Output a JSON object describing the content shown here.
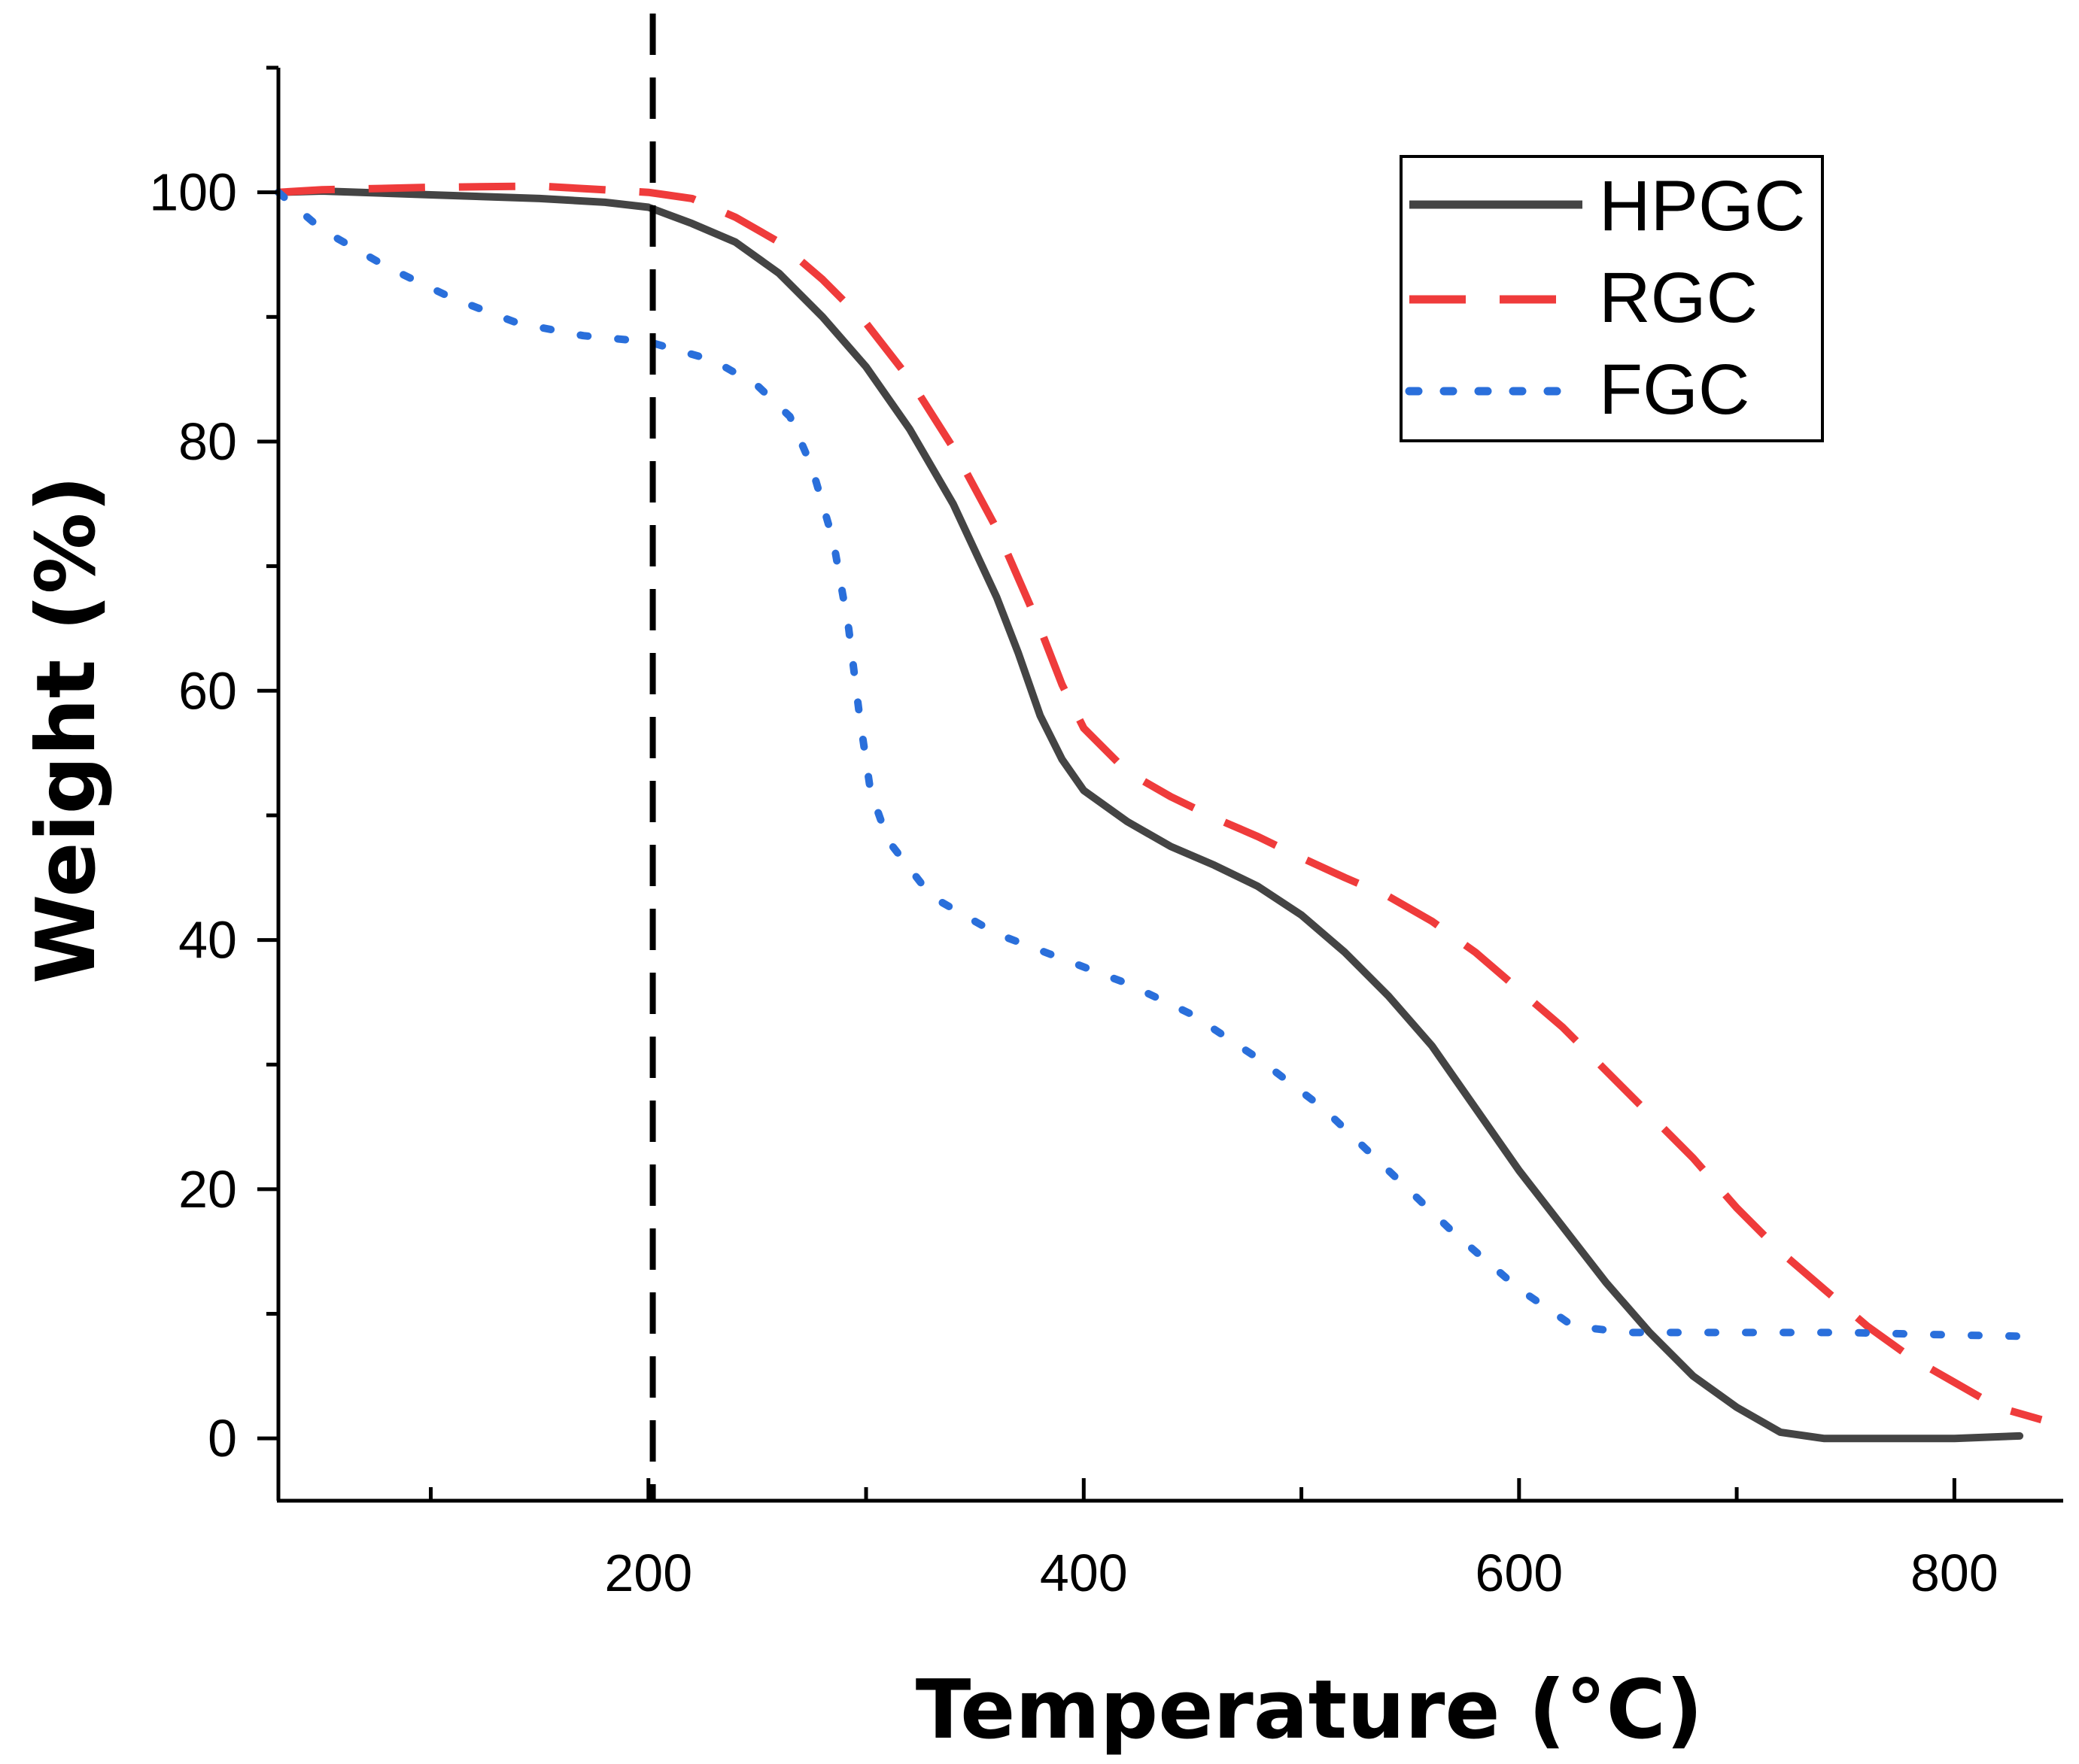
{
  "chart_data": {
    "type": "line",
    "title": "",
    "xlabel": "Temperature (°C)",
    "ylabel": "Weight (%)",
    "xlim": [
      30,
      850
    ],
    "ylim": [
      -5,
      110
    ],
    "x_ticks": [
      200,
      400,
      600,
      800
    ],
    "x_tick_labels": [
      "200",
      "400",
      "600",
      "800"
    ],
    "y_ticks": [
      0,
      20,
      40,
      60,
      80,
      100
    ],
    "y_tick_labels": [
      "0",
      "20",
      "40",
      "60",
      "80",
      "100"
    ],
    "grid": false,
    "legend_position": "top-right",
    "reference_line": {
      "axis": "x",
      "value": 202,
      "style": "dashed",
      "color": "#000000"
    },
    "series": [
      {
        "name": "HPGC",
        "style": "solid",
        "color": "#444444",
        "points": [
          [
            30,
            100
          ],
          [
            50,
            100.1
          ],
          [
            100,
            99.8
          ],
          [
            150,
            99.5
          ],
          [
            180,
            99.2
          ],
          [
            200,
            98.8
          ],
          [
            220,
            97.5
          ],
          [
            240,
            96
          ],
          [
            260,
            93.5
          ],
          [
            280,
            90
          ],
          [
            300,
            86
          ],
          [
            320,
            81
          ],
          [
            340,
            75
          ],
          [
            360,
            67.5
          ],
          [
            370,
            63
          ],
          [
            380,
            58
          ],
          [
            390,
            54.5
          ],
          [
            400,
            52
          ],
          [
            420,
            49.5
          ],
          [
            440,
            47.5
          ],
          [
            460,
            46
          ],
          [
            480,
            44.3
          ],
          [
            500,
            42
          ],
          [
            520,
            39
          ],
          [
            540,
            35.5
          ],
          [
            560,
            31.5
          ],
          [
            580,
            26.5
          ],
          [
            600,
            21.5
          ],
          [
            620,
            17
          ],
          [
            640,
            12.5
          ],
          [
            660,
            8.5
          ],
          [
            680,
            5
          ],
          [
            700,
            2.5
          ],
          [
            720,
            0.5
          ],
          [
            740,
            0
          ],
          [
            780,
            0
          ],
          [
            800,
            0
          ],
          [
            830,
            0.2
          ]
        ]
      },
      {
        "name": "RGC",
        "style": "dashed",
        "color": "#ef3b3b",
        "points": [
          [
            30,
            100
          ],
          [
            50,
            100.2
          ],
          [
            100,
            100.4
          ],
          [
            150,
            100.5
          ],
          [
            200,
            100
          ],
          [
            220,
            99.5
          ],
          [
            240,
            98
          ],
          [
            260,
            96
          ],
          [
            280,
            93
          ],
          [
            300,
            89.5
          ],
          [
            320,
            85
          ],
          [
            340,
            79.5
          ],
          [
            360,
            73
          ],
          [
            380,
            65
          ],
          [
            390,
            60.5
          ],
          [
            400,
            57
          ],
          [
            420,
            53.5
          ],
          [
            440,
            51.5
          ],
          [
            460,
            49.8
          ],
          [
            480,
            48.3
          ],
          [
            500,
            46.6
          ],
          [
            520,
            45
          ],
          [
            540,
            43.5
          ],
          [
            560,
            41.5
          ],
          [
            580,
            39
          ],
          [
            600,
            36
          ],
          [
            620,
            33
          ],
          [
            640,
            29.5
          ],
          [
            660,
            26
          ],
          [
            680,
            22.5
          ],
          [
            700,
            18.5
          ],
          [
            720,
            15
          ],
          [
            740,
            12
          ],
          [
            760,
            9
          ],
          [
            780,
            6.5
          ],
          [
            800,
            4.5
          ],
          [
            820,
            2.5
          ],
          [
            840,
            1.5
          ]
        ]
      },
      {
        "name": "FGC",
        "style": "dotted",
        "color": "#2a6fdb",
        "points": [
          [
            30,
            100
          ],
          [
            50,
            97
          ],
          [
            80,
            94
          ],
          [
            110,
            91.5
          ],
          [
            140,
            89.5
          ],
          [
            170,
            88.5
          ],
          [
            200,
            88
          ],
          [
            230,
            86.5
          ],
          [
            250,
            84.5
          ],
          [
            265,
            82
          ],
          [
            275,
            78
          ],
          [
            285,
            72
          ],
          [
            292,
            65
          ],
          [
            297,
            58
          ],
          [
            302,
            52
          ],
          [
            310,
            48
          ],
          [
            330,
            43.5
          ],
          [
            360,
            40.5
          ],
          [
            390,
            38.5
          ],
          [
            420,
            36.5
          ],
          [
            450,
            34
          ],
          [
            480,
            30.5
          ],
          [
            510,
            26.5
          ],
          [
            540,
            21.5
          ],
          [
            570,
            16.5
          ],
          [
            600,
            12
          ],
          [
            625,
            9
          ],
          [
            650,
            8.5
          ],
          [
            700,
            8.5
          ],
          [
            750,
            8.5
          ],
          [
            800,
            8.3
          ],
          [
            830,
            8.2
          ]
        ]
      }
    ]
  }
}
